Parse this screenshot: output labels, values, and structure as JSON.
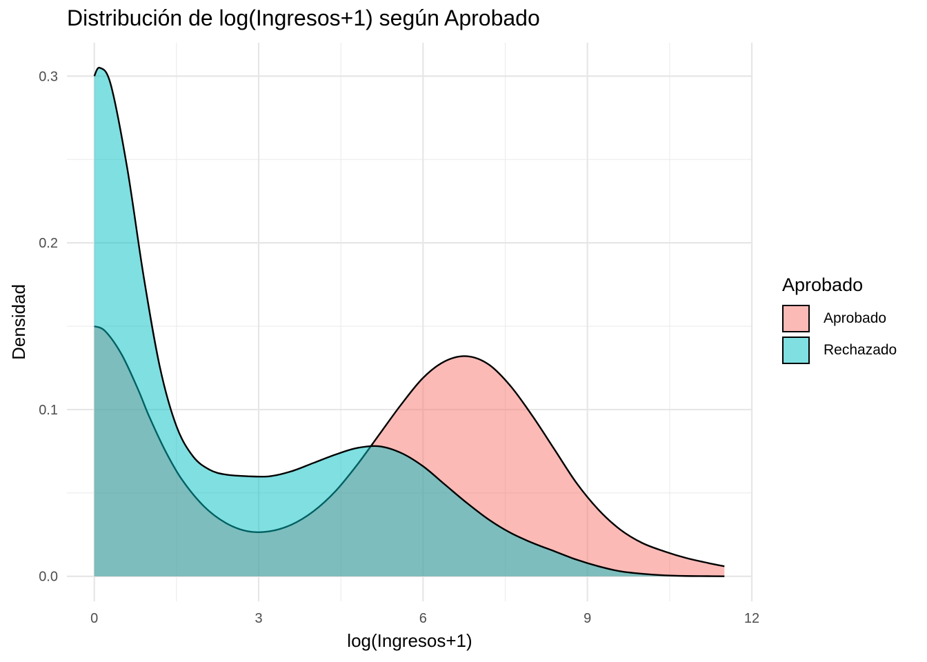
{
  "chart_data": {
    "type": "area",
    "title": "Distribución de log(Ingresos+1) según Aprobado",
    "xlabel": "log(Ingresos+1)",
    "ylabel": "Densidad",
    "xlim": [
      -0.5,
      12.0
    ],
    "ylim": [
      -0.015,
      0.32
    ],
    "x_ticks": [
      0,
      3,
      6,
      9,
      12
    ],
    "x_tick_labels": [
      "0",
      "3",
      "6",
      "9",
      "12"
    ],
    "y_ticks": [
      0.0,
      0.1,
      0.2,
      0.3
    ],
    "y_tick_labels": [
      "0.0",
      "0.1",
      "0.2",
      "0.3"
    ],
    "grid": true,
    "legend": {
      "title": "Aprobado",
      "position": "right"
    },
    "series": [
      {
        "name": "Aprobado",
        "color": "#F8766D",
        "x": [
          0.0,
          0.2,
          0.5,
          0.8,
          1.0,
          1.3,
          1.6,
          2.0,
          2.4,
          2.8,
          3.2,
          3.6,
          4.0,
          4.4,
          4.8,
          5.2,
          5.6,
          6.0,
          6.4,
          6.8,
          7.2,
          7.6,
          8.0,
          8.4,
          8.8,
          9.2,
          9.6,
          10.0,
          10.4,
          10.8,
          11.2,
          11.5
        ],
        "values": [
          0.15,
          0.147,
          0.133,
          0.112,
          0.096,
          0.075,
          0.058,
          0.042,
          0.032,
          0.027,
          0.027,
          0.031,
          0.039,
          0.051,
          0.067,
          0.085,
          0.103,
          0.119,
          0.129,
          0.132,
          0.127,
          0.114,
          0.096,
          0.076,
          0.056,
          0.04,
          0.028,
          0.02,
          0.015,
          0.011,
          0.008,
          0.006
        ]
      },
      {
        "name": "Rechazado",
        "color": "#00BFC4",
        "x": [
          0.0,
          0.1,
          0.3,
          0.6,
          0.9,
          1.2,
          1.5,
          1.8,
          2.1,
          2.4,
          2.8,
          3.2,
          3.6,
          4.0,
          4.4,
          4.8,
          5.2,
          5.6,
          6.0,
          6.4,
          6.8,
          7.2,
          7.6,
          8.0,
          8.4,
          8.8,
          9.2,
          9.6,
          10.0,
          10.4,
          10.8,
          11.2,
          11.5
        ],
        "values": [
          0.3,
          0.305,
          0.295,
          0.245,
          0.18,
          0.125,
          0.09,
          0.072,
          0.064,
          0.061,
          0.06,
          0.06,
          0.063,
          0.068,
          0.073,
          0.077,
          0.078,
          0.074,
          0.066,
          0.055,
          0.044,
          0.034,
          0.026,
          0.02,
          0.015,
          0.01,
          0.006,
          0.003,
          0.0015,
          0.0006,
          0.0002,
          0.0001,
          0.0
        ]
      }
    ]
  }
}
